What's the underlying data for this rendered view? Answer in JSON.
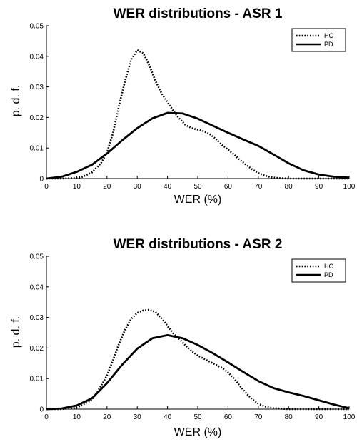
{
  "chart_data": [
    {
      "type": "line",
      "title": "WER distributions - ASR 1",
      "xlabel": "WER (%)",
      "ylabel": "p. d. f.",
      "xlim": [
        0,
        100
      ],
      "ylim": [
        0,
        0.05
      ],
      "xticks": [
        "0",
        "10",
        "20",
        "30",
        "40",
        "50",
        "60",
        "70",
        "80",
        "90",
        "100"
      ],
      "yticks": [
        "0",
        "0.01",
        "0.02",
        "0.03",
        "0.04",
        "0.05"
      ],
      "grid": false,
      "legend": "top-right",
      "series": [
        {
          "name": "HC",
          "style": "dotted",
          "x": [
            0,
            5,
            10,
            12,
            15,
            18,
            20,
            22,
            24,
            26,
            28,
            30,
            32,
            34,
            36,
            38,
            40,
            42,
            44,
            46,
            48,
            50,
            52,
            54,
            56,
            58,
            60,
            62,
            64,
            66,
            68,
            70,
            72,
            74,
            76,
            78,
            80,
            85,
            90,
            100
          ],
          "y": [
            0,
            0,
            0.0002,
            0.0006,
            0.002,
            0.005,
            0.0085,
            0.015,
            0.024,
            0.032,
            0.039,
            0.042,
            0.041,
            0.037,
            0.032,
            0.028,
            0.025,
            0.022,
            0.0195,
            0.0175,
            0.0165,
            0.016,
            0.0155,
            0.0145,
            0.013,
            0.011,
            0.0095,
            0.0078,
            0.006,
            0.0045,
            0.003,
            0.0018,
            0.001,
            0.0005,
            0.0002,
            0.0001,
            0,
            0,
            0,
            0
          ]
        },
        {
          "name": "PD",
          "style": "solid",
          "x": [
            0,
            5,
            10,
            15,
            20,
            25,
            30,
            35,
            40,
            45,
            50,
            55,
            60,
            65,
            70,
            75,
            80,
            85,
            90,
            95,
            100
          ],
          "y": [
            0,
            0.0006,
            0.0022,
            0.0045,
            0.0082,
            0.0125,
            0.0165,
            0.0197,
            0.0215,
            0.0213,
            0.0196,
            0.0173,
            0.015,
            0.0128,
            0.0107,
            0.0079,
            0.005,
            0.0027,
            0.0013,
            0.0006,
            0.0003
          ]
        }
      ]
    },
    {
      "type": "line",
      "title": "WER distributions - ASR 2",
      "xlabel": "WER (%)",
      "ylabel": "p. d. f.",
      "xlim": [
        0,
        100
      ],
      "ylim": [
        0,
        0.05
      ],
      "xticks": [
        "0",
        "10",
        "20",
        "30",
        "40",
        "50",
        "60",
        "70",
        "80",
        "90",
        "100"
      ],
      "yticks": [
        "0",
        "0.01",
        "0.02",
        "0.03",
        "0.04",
        "0.05"
      ],
      "grid": false,
      "legend": "top-right",
      "series": [
        {
          "name": "HC",
          "style": "dotted",
          "x": [
            0,
            5,
            10,
            15,
            18,
            20,
            22,
            24,
            26,
            28,
            30,
            32,
            34,
            36,
            38,
            40,
            42,
            44,
            46,
            48,
            50,
            52,
            55,
            58,
            60,
            62,
            64,
            66,
            68,
            70,
            72,
            75,
            80,
            90,
            100
          ],
          "y": [
            0,
            0,
            0.0005,
            0.003,
            0.0075,
            0.011,
            0.016,
            0.0215,
            0.026,
            0.0295,
            0.0315,
            0.0323,
            0.0325,
            0.0318,
            0.0298,
            0.0272,
            0.0247,
            0.0228,
            0.0208,
            0.019,
            0.0175,
            0.0165,
            0.015,
            0.0135,
            0.012,
            0.01,
            0.0075,
            0.0052,
            0.0032,
            0.0018,
            0.0009,
            0.0003,
            0,
            0,
            0
          ]
        },
        {
          "name": "PD",
          "style": "solid",
          "x": [
            0,
            5,
            10,
            15,
            20,
            25,
            30,
            35,
            40,
            45,
            50,
            55,
            60,
            65,
            70,
            75,
            80,
            85,
            90,
            95,
            100
          ],
          "y": [
            0,
            0.0002,
            0.0012,
            0.0035,
            0.0085,
            0.0145,
            0.0198,
            0.0232,
            0.0242,
            0.0232,
            0.021,
            0.0183,
            0.0153,
            0.0122,
            0.0092,
            0.0069,
            0.0055,
            0.0043,
            0.0029,
            0.0015,
            0.0003
          ]
        }
      ]
    }
  ]
}
